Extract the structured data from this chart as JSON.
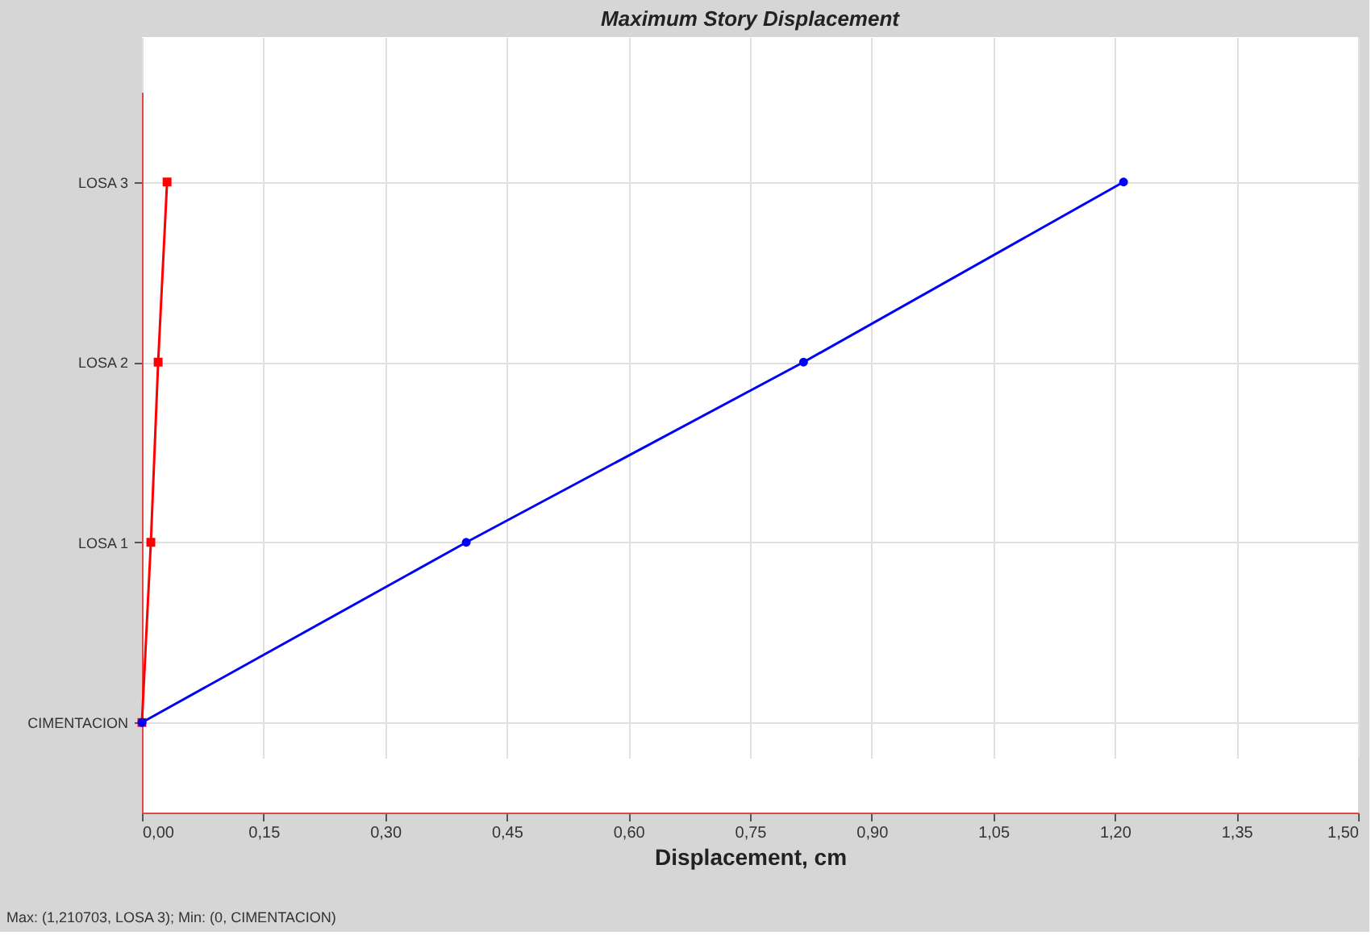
{
  "chart_data": {
    "type": "line",
    "title": "Maximum Story Displacement",
    "xlabel": "Displacement, cm",
    "orientation": "horizontal",
    "categories": [
      "LOSA 3",
      "LOSA 2",
      "LOSA 1",
      "CIMENTACION"
    ],
    "xlim": [
      0,
      1.5
    ],
    "xticks": [
      {
        "value": 0,
        "label": "0,00"
      },
      {
        "value": 0.15,
        "label": "0,15"
      },
      {
        "value": 0.3,
        "label": "0,30"
      },
      {
        "value": 0.45,
        "label": "0,45"
      },
      {
        "value": 0.6,
        "label": "0,60"
      },
      {
        "value": 0.75,
        "label": "0,75"
      },
      {
        "value": 0.9,
        "label": "0,90"
      },
      {
        "value": 1.05,
        "label": "1,05"
      },
      {
        "value": 1.2,
        "label": "1,20"
      },
      {
        "value": 1.35,
        "label": "1,35"
      },
      {
        "value": 1.5,
        "label": "1,50"
      }
    ],
    "series": [
      {
        "color": "#ff0000",
        "marker": "square",
        "values": [
          0.031,
          0.02,
          0.011,
          0
        ]
      },
      {
        "color": "#0000ff",
        "marker": "circle",
        "values": [
          1.210703,
          0.816,
          0.4,
          0
        ]
      }
    ],
    "grid": true,
    "annotations": [
      "Max: (1,210703, LOSA 3);   Min: (0, CIMENTACION)"
    ]
  }
}
